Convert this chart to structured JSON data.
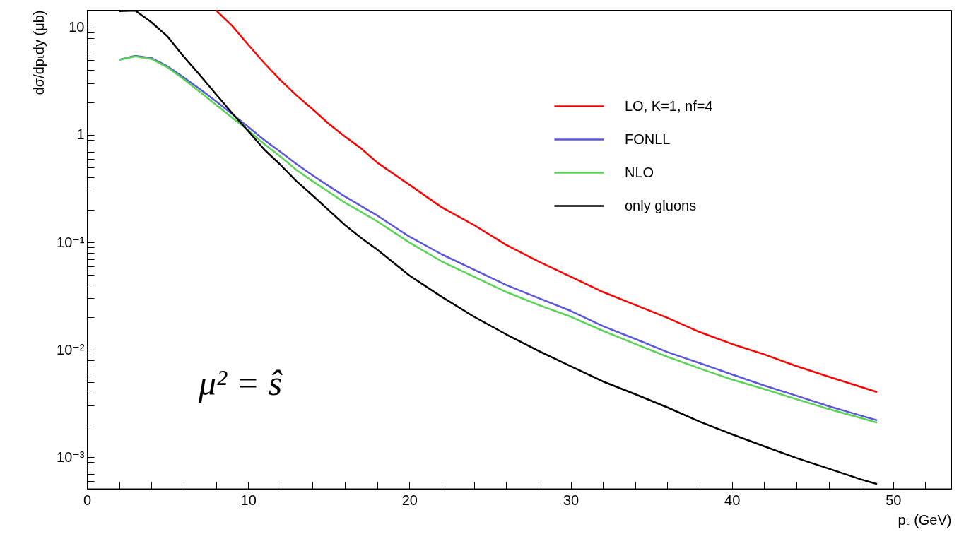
{
  "chart_data": {
    "type": "line",
    "ylabel": "dσ/dpₜdy (μb)",
    "xlabel": "pₜ (GeV)",
    "log": "y",
    "grid": false,
    "legend": "top right",
    "annotations": [
      "μ² = ŝ"
    ],
    "xlim": [
      0,
      53.6
    ],
    "xticks": [
      0,
      {
        "value": 2,
        "label": null
      },
      {
        "value": 4,
        "label": null
      },
      {
        "value": 6,
        "label": null
      },
      {
        "value": 8,
        "label": null
      },
      10,
      {
        "value": 12,
        "label": null
      },
      {
        "value": 14,
        "label": null
      },
      {
        "value": 16,
        "label": null
      },
      {
        "value": 18,
        "label": null
      },
      20,
      {
        "value": 22,
        "label": null
      },
      {
        "value": 24,
        "label": null
      },
      {
        "value": 26,
        "label": null
      },
      {
        "value": 28,
        "label": null
      },
      30,
      {
        "value": 32,
        "label": null
      },
      {
        "value": 34,
        "label": null
      },
      {
        "value": 36,
        "label": null
      },
      {
        "value": 38,
        "label": null
      },
      40,
      {
        "value": 42,
        "label": null
      },
      {
        "value": 44,
        "label": null
      },
      {
        "value": 46,
        "label": null
      },
      {
        "value": 48,
        "label": null
      },
      50,
      {
        "value": 52,
        "label": null
      }
    ],
    "ylim": [
      0.000506,
      14.6
    ],
    "yticks": [
      {
        "value": 0.0006,
        "label": null
      },
      {
        "value": 0.0007,
        "label": null
      },
      {
        "value": 0.0008,
        "label": null
      },
      {
        "value": 0.0009,
        "label": null
      },
      {
        "value": 0.001,
        "label": "10⁻³"
      },
      {
        "value": 0.002,
        "label": null
      },
      {
        "value": 0.003,
        "label": null
      },
      {
        "value": 0.004,
        "label": null
      },
      {
        "value": 0.005,
        "label": null
      },
      {
        "value": 0.006,
        "label": null
      },
      {
        "value": 0.007,
        "label": null
      },
      {
        "value": 0.008,
        "label": null
      },
      {
        "value": 0.009,
        "label": null
      },
      {
        "value": 0.01,
        "label": "10⁻²"
      },
      {
        "value": 0.02,
        "label": null
      },
      {
        "value": 0.03,
        "label": null
      },
      {
        "value": 0.04,
        "label": null
      },
      {
        "value": 0.05,
        "label": null
      },
      {
        "value": 0.06,
        "label": null
      },
      {
        "value": 0.07,
        "label": null
      },
      {
        "value": 0.08,
        "label": null
      },
      {
        "value": 0.09,
        "label": null
      },
      {
        "value": 0.1,
        "label": "10⁻¹"
      },
      {
        "value": 0.2,
        "label": null
      },
      {
        "value": 0.3,
        "label": null
      },
      {
        "value": 0.4,
        "label": null
      },
      {
        "value": 0.5,
        "label": null
      },
      {
        "value": 0.6,
        "label": null
      },
      {
        "value": 0.7,
        "label": null
      },
      {
        "value": 0.8,
        "label": null
      },
      {
        "value": 0.9,
        "label": null
      },
      1,
      {
        "value": 2,
        "label": null
      },
      {
        "value": 3,
        "label": null
      },
      {
        "value": 4,
        "label": null
      },
      {
        "value": 5,
        "label": null
      },
      {
        "value": 6,
        "label": null
      },
      {
        "value": 7,
        "label": null
      },
      {
        "value": 8,
        "label": null
      },
      {
        "value": 9,
        "label": null
      },
      10
    ],
    "x": [
      2,
      3,
      4,
      5,
      6,
      7,
      8,
      9,
      10,
      11,
      12,
      13,
      14,
      15,
      16,
      17,
      18,
      20,
      22,
      24,
      26,
      28,
      30,
      32,
      34,
      36,
      38,
      40,
      42,
      44,
      46,
      48,
      49
    ],
    "series": [
      {
        "name": "LO, K=1, nf=4",
        "color": "#ff0000",
        "values": [
          null,
          null,
          null,
          null,
          null,
          null,
          14.5,
          10.4,
          6.92,
          4.67,
          3.24,
          2.33,
          1.73,
          1.27,
          0.966,
          0.75,
          0.553,
          0.343,
          0.212,
          0.145,
          0.0946,
          0.0664,
          0.0479,
          0.0345,
          0.0261,
          0.0198,
          0.0146,
          0.0113,
          0.00904,
          0.00703,
          0.0056,
          0.0045,
          0.00403
        ]
      },
      {
        "name": "FONLL",
        "color": "#5b57db",
        "values": [
          5.03,
          5.45,
          5.2,
          4.35,
          3.44,
          2.68,
          2.06,
          1.57,
          1.19,
          0.895,
          0.695,
          0.535,
          0.42,
          0.334,
          0.267,
          0.218,
          0.178,
          0.113,
          0.0773,
          0.0557,
          0.0401,
          0.0303,
          0.023,
          0.0166,
          0.0126,
          0.0095,
          0.0075,
          0.00589,
          0.00464,
          0.00373,
          0.00298,
          0.00243,
          0.0022
        ]
      },
      {
        "name": "NLO",
        "color": "#59d354",
        "values": [
          5.0,
          5.4,
          5.1,
          4.25,
          3.31,
          2.52,
          1.91,
          1.45,
          1.11,
          0.82,
          0.63,
          0.47,
          0.37,
          0.294,
          0.234,
          0.192,
          0.157,
          0.0995,
          0.0664,
          0.0478,
          0.0345,
          0.0261,
          0.0203,
          0.015,
          0.0113,
          0.0086,
          0.00668,
          0.00527,
          0.0043,
          0.00346,
          0.0028,
          0.00231,
          0.00209
        ]
      },
      {
        "name": "only gluons",
        "color": "#000000",
        "values": [
          14.2,
          14.4,
          11.2,
          8.25,
          5.37,
          3.62,
          2.4,
          1.6,
          1.09,
          0.73,
          0.527,
          0.37,
          0.273,
          0.199,
          0.145,
          0.11,
          0.0855,
          0.0491,
          0.0311,
          0.0203,
          0.0139,
          0.00975,
          0.00703,
          0.00506,
          0.00385,
          0.0029,
          0.00214,
          0.00163,
          0.00126,
          0.00098,
          0.00078,
          0.00062,
          0.00056
        ]
      }
    ]
  }
}
